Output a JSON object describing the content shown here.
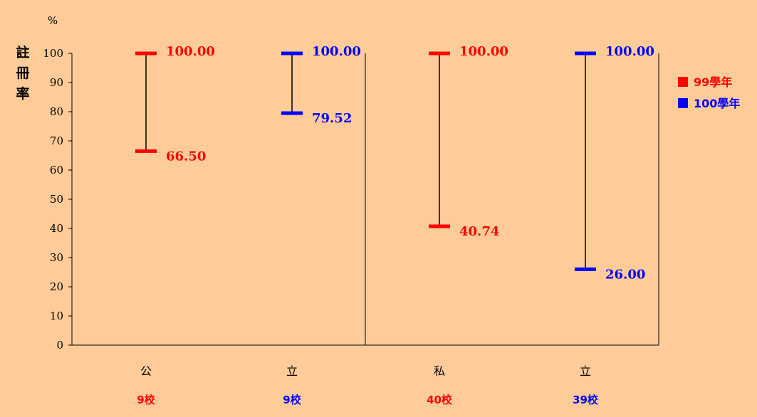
{
  "chart_data": {
    "type": "range",
    "ylabel": "註\n冊\n率",
    "yunit": "%",
    "ylim": [
      0,
      100
    ],
    "yticks": [
      0,
      10,
      20,
      30,
      40,
      50,
      60,
      70,
      80,
      90,
      100
    ],
    "grid": false,
    "legend_position": "right",
    "categories": [
      "公",
      "立",
      "私",
      "立"
    ],
    "school_counts": [
      "9校",
      "9校",
      "40校",
      "39校"
    ],
    "series": [
      {
        "name": "99學年",
        "color": "#ff0000"
      },
      {
        "name": "100學年",
        "color": "#0000ff"
      }
    ],
    "ranges": [
      {
        "category": "公",
        "series": "99學年",
        "max": 100.0,
        "min": 66.5,
        "max_label": "100.00",
        "min_label": "66.50",
        "color": "#ff0000"
      },
      {
        "category": "立",
        "series": "100學年",
        "max": 100.0,
        "min": 79.52,
        "max_label": "100.00",
        "min_label": "79.52",
        "color": "#0000ff"
      },
      {
        "category": "私",
        "series": "99學年",
        "max": 100.0,
        "min": 40.74,
        "max_label": "100.00",
        "min_label": "40.74",
        "color": "#ff0000"
      },
      {
        "category": "立",
        "series": "100學年",
        "max": 100.0,
        "min": 26.0,
        "max_label": "100.00",
        "min_label": "26.00",
        "color": "#0000ff"
      }
    ]
  },
  "colors": {
    "background": "#ffcc99",
    "axis": "#000000",
    "red": "#ff0000",
    "blue": "#0000ff"
  }
}
